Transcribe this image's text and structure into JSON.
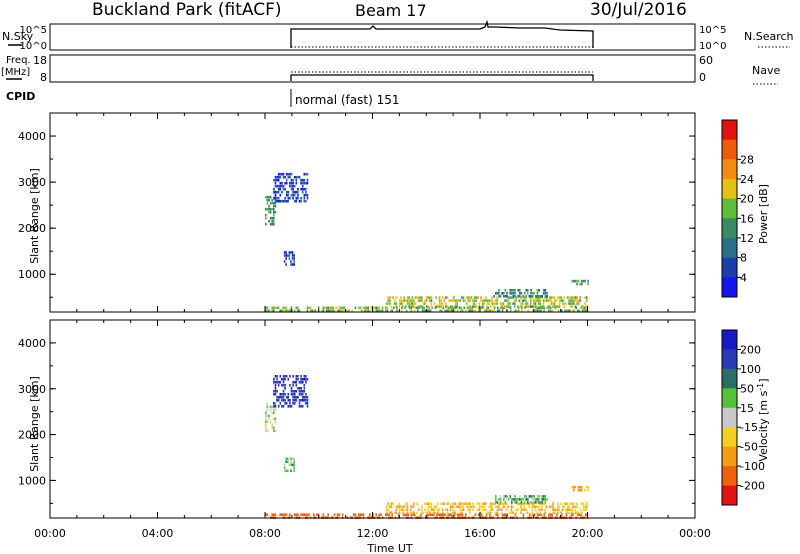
{
  "header": {
    "station": "Buckland Park (fitACF)",
    "beam": "Beam 17",
    "date": "30/Jul/2016"
  },
  "strip_panels": {
    "nsky_label": "N.Sky",
    "nsky_ticks_left": [
      "10^5",
      "10^0"
    ],
    "nsearch_label": "N.Search",
    "nsearch_ticks_right": [
      "10^5",
      "10^0"
    ],
    "freq_label": "Freq.",
    "freq_unit": "[MHz]",
    "freq_ticks_left": [
      "18",
      "8"
    ],
    "nave_label": "Nave",
    "nave_ticks_right": [
      "60",
      "0"
    ],
    "cpid_label": "CPID",
    "cpid_value": "normal (fast) 151"
  },
  "colors": {
    "power_scale": [
      "#1515ee",
      "#1a3fa8",
      "#2d6e8a",
      "#3b8a63",
      "#5fbb3a",
      "#e6c019",
      "#f28c12",
      "#ee5a0e",
      "#e01212"
    ],
    "velocity_scale": [
      "#1a1ac4",
      "#2a3ab0",
      "#2b6e68",
      "#52c23a",
      "#c8c8c8",
      "#f2cf20",
      "#f49c14",
      "#f06210",
      "#e01212"
    ],
    "power_hex_bands_note": "",
    "outline": "#000000"
  },
  "power_colorbar": {
    "title": "Power [dB]",
    "ticks": [
      "4",
      "8",
      "12",
      "16",
      "20",
      "24",
      "28"
    ]
  },
  "velocity_colorbar": {
    "title_main": "Velocity [m s",
    "title_sup": "-1",
    "title_end": "]",
    "ticks": [
      "-200",
      "-100",
      "-50",
      "-15",
      "15",
      "50",
      "100",
      "200"
    ]
  },
  "chart_data": [
    {
      "type": "heatmap",
      "name": "power",
      "ylabel": "Slant Range [km]",
      "xlabel": "Time UT",
      "xlim": [
        0,
        24
      ],
      "ylim": [
        180,
        4500
      ],
      "yticks": [
        "1000",
        "2000",
        "3000",
        "4000"
      ],
      "xtick_labels": [
        "00:00",
        "04:00",
        "08:00",
        "12:00",
        "16:00",
        "20:00",
        "00:00"
      ],
      "data_window_hours": [
        8,
        20
      ],
      "clusters": [
        {
          "t0": 8.0,
          "t1": 20.0,
          "r0": 180,
          "r1": 300,
          "value_dB": 18
        },
        {
          "t0": 12.5,
          "t1": 20.0,
          "r0": 300,
          "r1": 520,
          "value_dB": 20
        },
        {
          "t0": 16.5,
          "t1": 18.5,
          "r0": 500,
          "r1": 680,
          "value_dB": 12
        },
        {
          "t0": 8.0,
          "t1": 8.4,
          "r0": 2100,
          "r1": 2700,
          "value_dB": 14
        },
        {
          "t0": 8.3,
          "t1": 9.6,
          "r0": 2600,
          "r1": 3200,
          "value_dB": 6
        },
        {
          "t0": 8.7,
          "t1": 9.1,
          "r0": 1200,
          "r1": 1500,
          "value_dB": 5
        },
        {
          "t0": 19.4,
          "t1": 20.0,
          "r0": 780,
          "r1": 880,
          "value_dB": 14
        }
      ]
    },
    {
      "type": "heatmap",
      "name": "velocity",
      "ylabel": "Slant Range [km]",
      "xlabel": "Time UT",
      "xlim": [
        0,
        24
      ],
      "ylim": [
        180,
        4500
      ],
      "yticks": [
        "1000",
        "2000",
        "3000",
        "4000"
      ],
      "xtick_labels": [
        "00:00",
        "04:00",
        "08:00",
        "12:00",
        "16:00",
        "20:00",
        "00:00"
      ],
      "data_window_hours": [
        8,
        20
      ],
      "clusters": [
        {
          "t0": 8.0,
          "t1": 20.0,
          "r0": 180,
          "r1": 280,
          "value_ms": -150
        },
        {
          "t0": 12.5,
          "t1": 20.0,
          "r0": 280,
          "r1": 520,
          "value_ms": -40
        },
        {
          "t0": 16.5,
          "t1": 18.5,
          "r0": 500,
          "r1": 680,
          "value_ms": 40
        },
        {
          "t0": 8.0,
          "t1": 8.4,
          "r0": 2100,
          "r1": 2700,
          "value_ms": 0
        },
        {
          "t0": 8.3,
          "t1": 9.6,
          "r0": 2600,
          "r1": 3300,
          "value_ms": 180
        },
        {
          "t0": 8.7,
          "t1": 9.1,
          "r0": 1200,
          "r1": 1500,
          "value_ms": 30
        },
        {
          "t0": 19.4,
          "t1": 20.0,
          "r0": 780,
          "r1": 880,
          "value_ms": -60
        }
      ]
    }
  ]
}
